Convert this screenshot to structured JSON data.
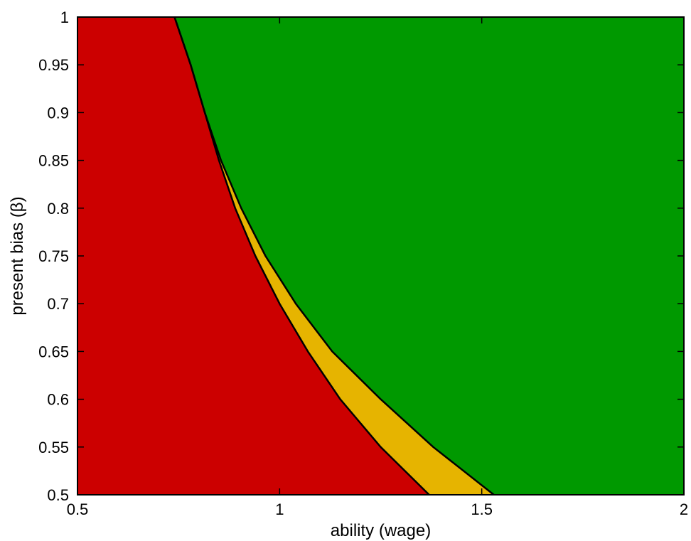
{
  "chart_data": {
    "type": "area",
    "xlabel": "ability (wage)",
    "ylabel": "present bias (β)",
    "xlim": [
      0.5,
      2
    ],
    "ylim": [
      0.5,
      1
    ],
    "xticks": [
      {
        "value": 0.5,
        "label": "0.5"
      },
      {
        "value": 1,
        "label": "1"
      },
      {
        "value": 1.5,
        "label": "1.5"
      },
      {
        "value": 2,
        "label": "2"
      }
    ],
    "yticks": [
      {
        "value": 0.5,
        "label": "0.5"
      },
      {
        "value": 0.55,
        "label": "0.55"
      },
      {
        "value": 0.6,
        "label": "0.6"
      },
      {
        "value": 0.65,
        "label": "0.65"
      },
      {
        "value": 0.7,
        "label": "0.7"
      },
      {
        "value": 0.75,
        "label": "0.75"
      },
      {
        "value": 0.8,
        "label": "0.8"
      },
      {
        "value": 0.85,
        "label": "0.85"
      },
      {
        "value": 0.9,
        "label": "0.9"
      },
      {
        "value": 0.95,
        "label": "0.95"
      },
      {
        "value": 1,
        "label": "1"
      }
    ],
    "boundaries": [
      {
        "name": "lower",
        "points": [
          [
            0.74,
            1.0
          ],
          [
            0.78,
            0.95
          ],
          [
            0.815,
            0.9
          ],
          [
            0.85,
            0.85
          ],
          [
            0.89,
            0.8
          ],
          [
            0.94,
            0.75
          ],
          [
            1.0,
            0.7
          ],
          [
            1.07,
            0.65
          ],
          [
            1.15,
            0.6
          ],
          [
            1.25,
            0.55
          ],
          [
            1.37,
            0.5
          ]
        ]
      },
      {
        "name": "upper",
        "points": [
          [
            0.74,
            1.0
          ],
          [
            0.78,
            0.95
          ],
          [
            0.815,
            0.9
          ],
          [
            0.855,
            0.85
          ],
          [
            0.905,
            0.8
          ],
          [
            0.965,
            0.75
          ],
          [
            1.04,
            0.7
          ],
          [
            1.13,
            0.65
          ],
          [
            1.25,
            0.6
          ],
          [
            1.38,
            0.55
          ],
          [
            1.53,
            0.5
          ]
        ]
      }
    ],
    "regions": [
      {
        "color": "#cc0000"
      },
      {
        "color": "#e6b400"
      },
      {
        "color": "#009900"
      }
    ],
    "grid": false,
    "legend": "none"
  }
}
